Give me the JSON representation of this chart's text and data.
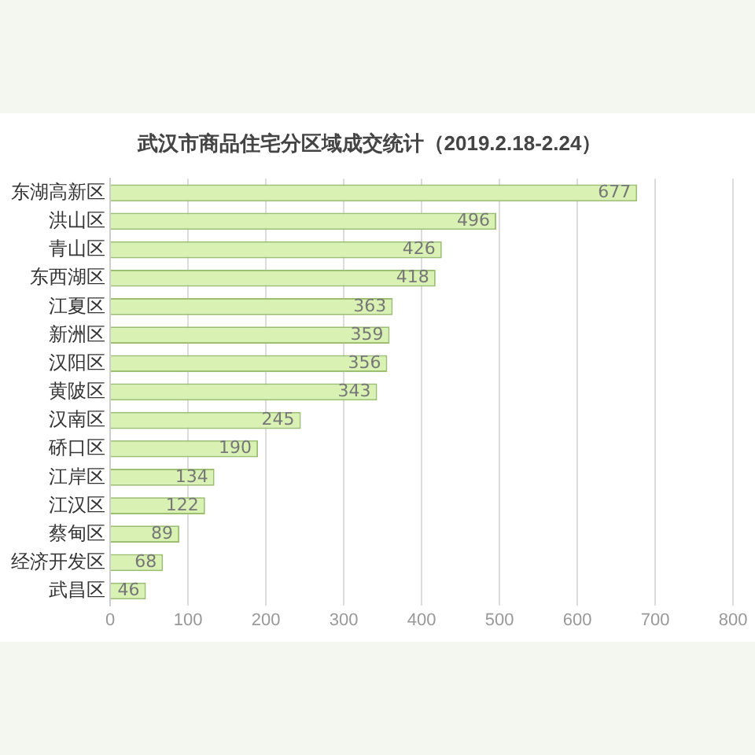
{
  "chart_data": {
    "type": "bar",
    "orientation": "horizontal",
    "title": "武汉市商品住宅分区域成交统计（2019.2.18-2.24）",
    "categories": [
      "东湖高新区",
      "洪山区",
      "青山区",
      "东西湖区",
      "江夏区",
      "新洲区",
      "汉阳区",
      "黄陂区",
      "汉南区",
      "硚口区",
      "江岸区",
      "江汉区",
      "蔡甸区",
      "经济开发区",
      "武昌区"
    ],
    "values": [
      677,
      496,
      426,
      418,
      363,
      359,
      356,
      343,
      245,
      190,
      134,
      122,
      89,
      68,
      46
    ],
    "color": "#d9f2b4",
    "xlim": [
      0,
      800
    ],
    "xticks": [
      0,
      100,
      200,
      300,
      400,
      500,
      600,
      700,
      800
    ],
    "grid": "x",
    "data_labels": true,
    "legend": false
  }
}
